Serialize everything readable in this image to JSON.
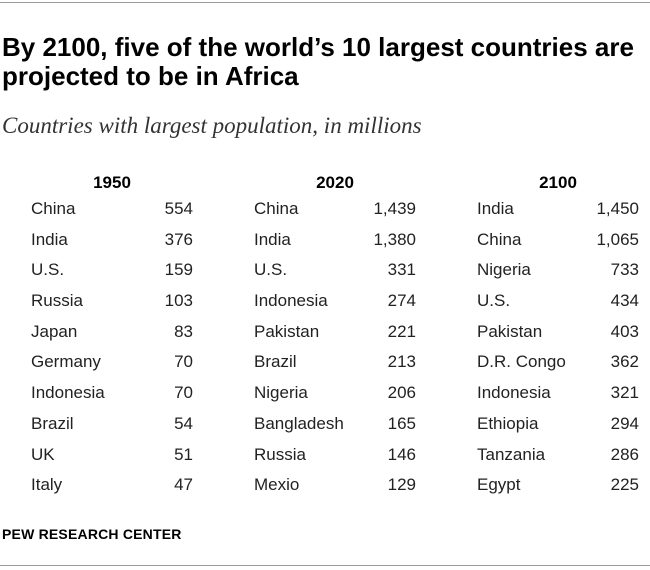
{
  "title": "By 2100, five of the world’s 10 largest countries are projected to be in Africa",
  "subtitle": "Countries with largest population, in millions",
  "source": "PEW RESEARCH CENTER",
  "chart_data": {
    "type": "table",
    "title": "By 2100, five of the world’s 10 largest countries are projected to be in Africa",
    "subtitle": "Countries with largest population, in millions",
    "columns": [
      {
        "year": "1950",
        "rows": [
          {
            "country": "China",
            "value": "554"
          },
          {
            "country": "India",
            "value": "376"
          },
          {
            "country": "U.S.",
            "value": "159"
          },
          {
            "country": "Russia",
            "value": "103"
          },
          {
            "country": "Japan",
            "value": "83"
          },
          {
            "country": "Germany",
            "value": "70"
          },
          {
            "country": "Indonesia",
            "value": "70"
          },
          {
            "country": "Brazil",
            "value": "54"
          },
          {
            "country": "UK",
            "value": "51"
          },
          {
            "country": "Italy",
            "value": "47"
          }
        ]
      },
      {
        "year": "2020",
        "rows": [
          {
            "country": "China",
            "value": "1,439"
          },
          {
            "country": "India",
            "value": "1,380"
          },
          {
            "country": "U.S.",
            "value": "331"
          },
          {
            "country": "Indonesia",
            "value": "274"
          },
          {
            "country": "Pakistan",
            "value": "221"
          },
          {
            "country": "Brazil",
            "value": "213"
          },
          {
            "country": "Nigeria",
            "value": "206"
          },
          {
            "country": "Bangladesh",
            "value": "165"
          },
          {
            "country": "Russia",
            "value": "146"
          },
          {
            "country": "Mexio",
            "value": "129"
          }
        ]
      },
      {
        "year": "2100",
        "rows": [
          {
            "country": "India",
            "value": "1,450"
          },
          {
            "country": "China",
            "value": "1,065"
          },
          {
            "country": "Nigeria",
            "value": "733"
          },
          {
            "country": "U.S.",
            "value": "434"
          },
          {
            "country": "Pakistan",
            "value": "403"
          },
          {
            "country": "D.R. Congo",
            "value": "362"
          },
          {
            "country": "Indonesia",
            "value": "321"
          },
          {
            "country": "Ethiopia",
            "value": "294"
          },
          {
            "country": "Tanzania",
            "value": "286"
          },
          {
            "country": "Egypt",
            "value": "225"
          }
        ]
      }
    ]
  }
}
